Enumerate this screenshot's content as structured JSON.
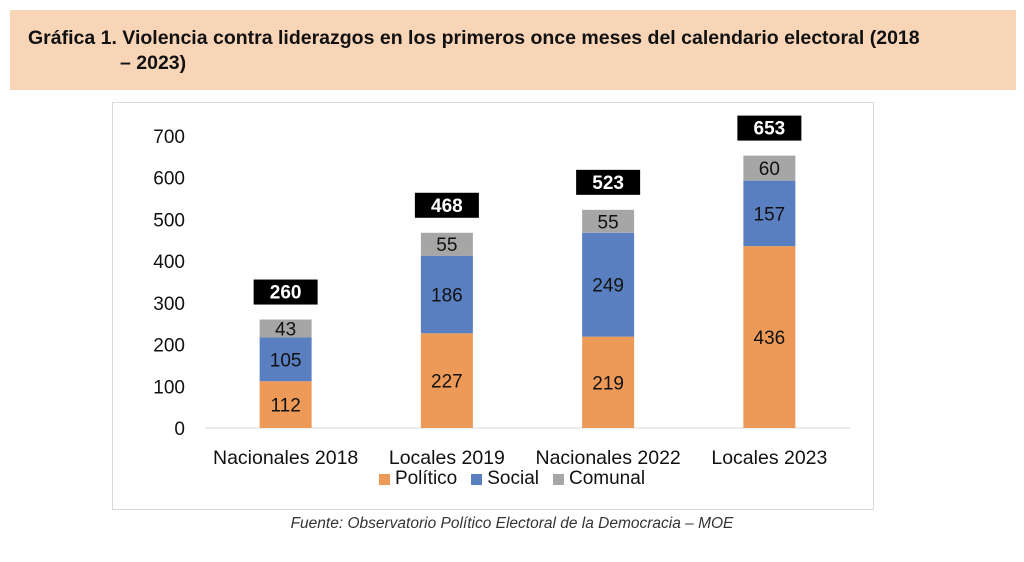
{
  "header": {
    "title_line1": "Gráfica 1. Violencia contra liderazgos en los primeros once meses del calendario electoral (2018",
    "title_line2": "– 2023)"
  },
  "source_note": "Fuente: Observatorio Político Electoral de la Democracia – MOE",
  "chart_data": {
    "type": "bar",
    "stacked": true,
    "categories": [
      "Nacionales 2018",
      "Locales 2019",
      "Nacionales 2022",
      "Locales 2023"
    ],
    "series": [
      {
        "name": "Político",
        "values": [
          112,
          227,
          219,
          436
        ],
        "color": "#ed9a59"
      },
      {
        "name": "Social",
        "values": [
          105,
          186,
          249,
          157
        ],
        "color": "#5a7fc0"
      },
      {
        "name": "Comunal",
        "values": [
          43,
          55,
          55,
          60
        ],
        "color": "#a6a6a6"
      }
    ],
    "totals": [
      260,
      468,
      523,
      653
    ],
    "ylim": [
      0,
      700
    ],
    "yticks": [
      "0",
      "100",
      "200",
      "300",
      "400",
      "500",
      "600",
      "700"
    ],
    "grid": false,
    "legend_position": "bottom"
  }
}
